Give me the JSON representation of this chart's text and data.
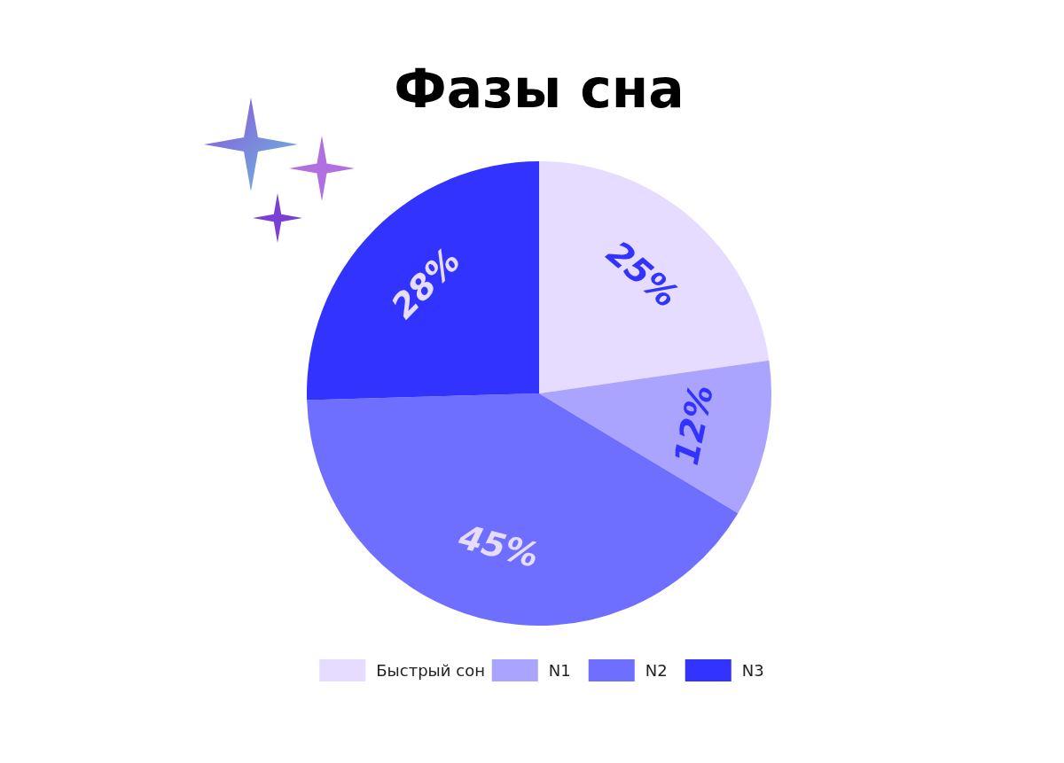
{
  "chart_data": {
    "type": "pie",
    "title": "Фазы сна",
    "categories": [
      "Быстрый сон",
      "N1",
      "N2",
      "N3"
    ],
    "values": [
      25,
      12,
      45,
      28
    ],
    "value_labels": [
      "25%",
      "12%",
      "45%",
      "28%"
    ],
    "colors": [
      "#e6dcff",
      "#aaa4ff",
      "#6e6eff",
      "#3333ff"
    ],
    "legend": "bottom"
  }
}
